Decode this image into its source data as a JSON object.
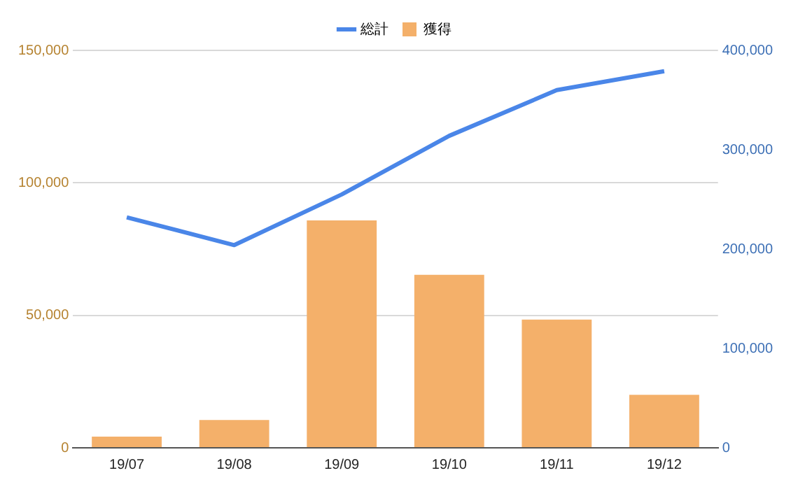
{
  "chart_data": {
    "type": "bar",
    "categories": [
      "19/07",
      "19/08",
      "19/09",
      "19/10",
      "19/11",
      "19/12"
    ],
    "series": [
      {
        "name": "総計",
        "type": "line",
        "axis": "y2",
        "color": "#4a86e8",
        "values": [
          232000,
          204000,
          255000,
          314000,
          360000,
          379000
        ]
      },
      {
        "name": "獲得",
        "color": "#f4b06a",
        "values": [
          4200,
          10500,
          85800,
          65300,
          48400,
          20000
        ]
      }
    ],
    "ylim": [
      0,
      150000
    ],
    "yticks": [
      {
        "value": 0,
        "label": "0"
      },
      {
        "value": 50000,
        "label": "50,000"
      },
      {
        "value": 100000,
        "label": "100,000"
      },
      {
        "value": 150000,
        "label": "150,000"
      }
    ],
    "y2lim": [
      0,
      400000
    ],
    "y2ticks": [
      {
        "value": 0,
        "label": "0"
      },
      {
        "value": 100000,
        "label": "100,000"
      },
      {
        "value": 200000,
        "label": "200,000"
      },
      {
        "value": 300000,
        "label": "300,000"
      },
      {
        "value": 400000,
        "label": "400,000"
      }
    ],
    "grid": "y",
    "legend": "top",
    "marker": "none"
  }
}
